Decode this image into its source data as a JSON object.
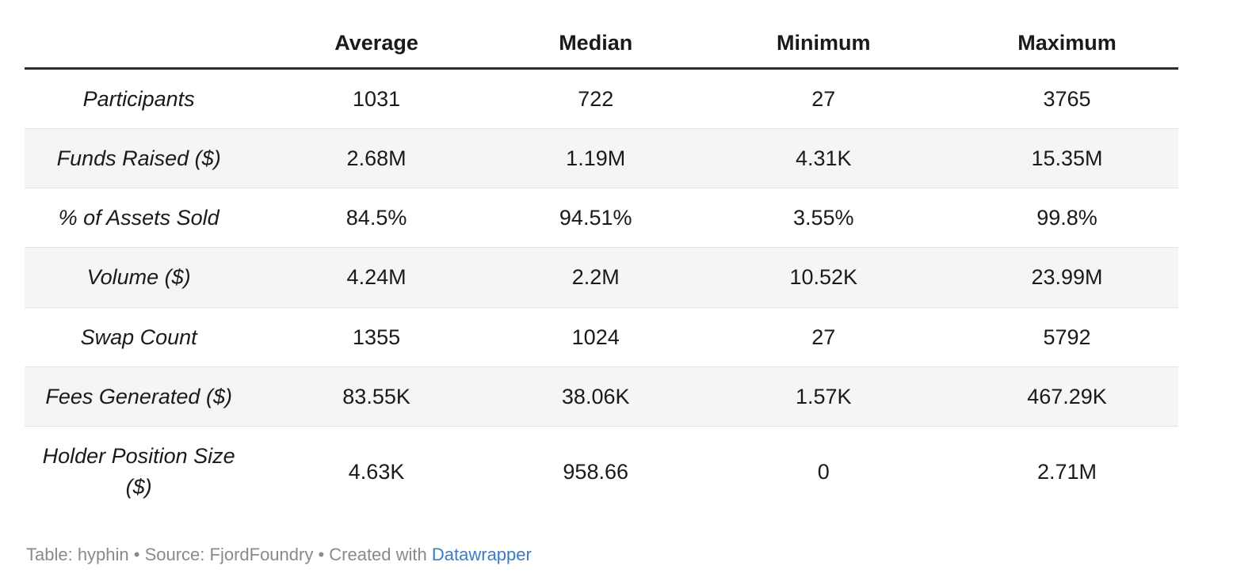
{
  "colors": {
    "text": "#1a1a1a",
    "zebra": "#f5f5f5",
    "rule": "#2e2e2e",
    "separator": "#e3e3e3",
    "footer-gray": "#8a8a8a",
    "link-blue": "#3b7cc4"
  },
  "table": {
    "columns": [
      "",
      "Average",
      "Median",
      "Minimum",
      "Maximum"
    ],
    "rows": [
      {
        "label": "Participants",
        "values": [
          "1031",
          "722",
          "27",
          "3765"
        ]
      },
      {
        "label": "Funds Raised ($)",
        "values": [
          "2.68M",
          "1.19M",
          "4.31K",
          "15.35M"
        ]
      },
      {
        "label": "% of Assets Sold",
        "values": [
          "84.5%",
          "94.51%",
          "3.55%",
          "99.8%"
        ]
      },
      {
        "label": "Volume ($)",
        "values": [
          "4.24M",
          "2.2M",
          "10.52K",
          "23.99M"
        ]
      },
      {
        "label": "Swap Count",
        "values": [
          "1355",
          "1024",
          "27",
          "5792"
        ]
      },
      {
        "label": "Fees Generated ($)",
        "values": [
          "83.55K",
          "38.06K",
          "1.57K",
          "467.29K"
        ]
      },
      {
        "label": "Holder Position Size ($)",
        "values": [
          "4.63K",
          "958.66",
          "0",
          "2.71M"
        ]
      }
    ]
  },
  "footer": {
    "prefix": "Table: hyphin • Source: FjordFoundry • Created with ",
    "link_label": "Datawrapper"
  },
  "chart_data": {
    "type": "table",
    "title": "",
    "columns": [
      "",
      "Average",
      "Median",
      "Minimum",
      "Maximum"
    ],
    "categories": [
      "Participants",
      "Funds Raised ($)",
      "% of Assets Sold",
      "Volume ($)",
      "Swap Count",
      "Fees Generated ($)",
      "Holder Position Size ($)"
    ],
    "series": [
      {
        "name": "Average",
        "values": [
          "1031",
          "2.68M",
          "84.5%",
          "4.24M",
          "1355",
          "83.55K",
          "4.63K"
        ]
      },
      {
        "name": "Median",
        "values": [
          "722",
          "1.19M",
          "94.51%",
          "2.2M",
          "1024",
          "38.06K",
          "958.66"
        ]
      },
      {
        "name": "Minimum",
        "values": [
          "27",
          "4.31K",
          "3.55%",
          "10.52K",
          "27",
          "1.57K",
          "0"
        ]
      },
      {
        "name": "Maximum",
        "values": [
          "3765",
          "15.35M",
          "99.8%",
          "23.99M",
          "5792",
          "467.29K",
          "2.71M"
        ]
      }
    ],
    "layout_hints": {
      "zebra_striping": true,
      "header_rule": "thick dark bottom border",
      "row_labels_italic": true,
      "all_cells_centered": true
    }
  }
}
